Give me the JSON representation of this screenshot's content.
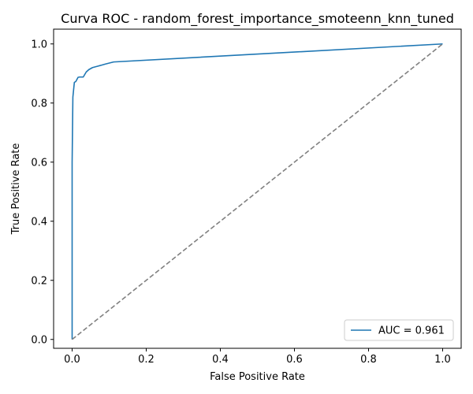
{
  "chart_data": {
    "type": "line",
    "title": "Curva ROC - random_forest_importance_smoteenn_knn_tuned",
    "xlabel": "False Positive Rate",
    "ylabel": "True Positive Rate",
    "xlim": [
      -0.05,
      1.05
    ],
    "ylim": [
      -0.03,
      1.05
    ],
    "xticks": [
      0.0,
      0.2,
      0.4,
      0.6,
      0.8,
      1.0
    ],
    "yticks": [
      0.0,
      0.2,
      0.4,
      0.6,
      0.8,
      1.0
    ],
    "xtick_labels": [
      "0.0",
      "0.2",
      "0.4",
      "0.6",
      "0.8",
      "1.0"
    ],
    "ytick_labels": [
      "0.0",
      "0.2",
      "0.4",
      "0.6",
      "0.8",
      "1.0"
    ],
    "grid": false,
    "legend_position": "lower-right",
    "series": [
      {
        "name": "AUC = 0.961",
        "color": "#1f77b4",
        "style": "solid",
        "x": [
          0.0,
          0.0,
          0.002,
          0.004,
          0.006,
          0.01,
          0.016,
          0.02,
          0.03,
          0.038,
          0.045,
          0.055,
          0.07,
          0.09,
          0.112,
          1.0
        ],
        "y": [
          0.0,
          0.6,
          0.82,
          0.845,
          0.87,
          0.873,
          0.887,
          0.888,
          0.888,
          0.905,
          0.913,
          0.92,
          0.925,
          0.932,
          0.939,
          1.0
        ]
      },
      {
        "name": "",
        "color": "#808080",
        "style": "dashed",
        "x": [
          0.0,
          1.0
        ],
        "y": [
          0.0,
          1.0
        ]
      }
    ],
    "legend": [
      {
        "label": "AUC = 0.961",
        "color": "#1f77b4"
      }
    ]
  }
}
